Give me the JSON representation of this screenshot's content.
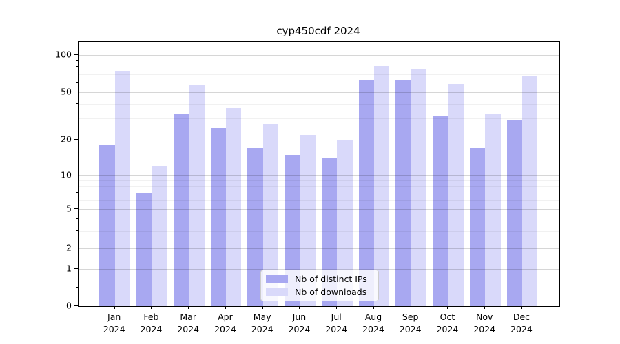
{
  "chart_data": {
    "type": "bar",
    "title": "cyp450cdf 2024",
    "year_label": "2024",
    "categories": [
      "Jan",
      "Feb",
      "Mar",
      "Apr",
      "May",
      "Jun",
      "Jul",
      "Aug",
      "Sep",
      "Oct",
      "Nov",
      "Dec"
    ],
    "series": [
      {
        "name": "Nb of distinct IPs",
        "key": "ips",
        "color": "#a8a8f1",
        "values": [
          18,
          7,
          33,
          25,
          17,
          15,
          14,
          62,
          62,
          32,
          17,
          29
        ]
      },
      {
        "name": "Nb of downloads",
        "key": "downloads",
        "color": "#d9d9fa",
        "values": [
          74,
          12,
          57,
          37,
          27,
          22,
          20,
          81,
          76,
          58,
          33,
          68
        ]
      }
    ],
    "yscale": "log-with-zero-floor",
    "ylim": [
      0,
      125
    ],
    "y_major_ticks": [
      0,
      1,
      2,
      5,
      10,
      20,
      50,
      100
    ],
    "y_minor_ticks": [
      0.5,
      3,
      4,
      6,
      7,
      8,
      9,
      30,
      40,
      60,
      70,
      80,
      90
    ],
    "grid": "horizontal, major and minor, drawn over bars",
    "legend_position": "inside bottom-center",
    "colors": {
      "background": "#ffffff",
      "spine": "#000000",
      "grid_major": "rgba(0,0,0,0.16)",
      "grid_minor": "rgba(0,0,0,0.055)",
      "legend_bg": "rgba(255,255,255,0.8)",
      "legend_border": "#cccccc",
      "text": "#000000"
    }
  }
}
